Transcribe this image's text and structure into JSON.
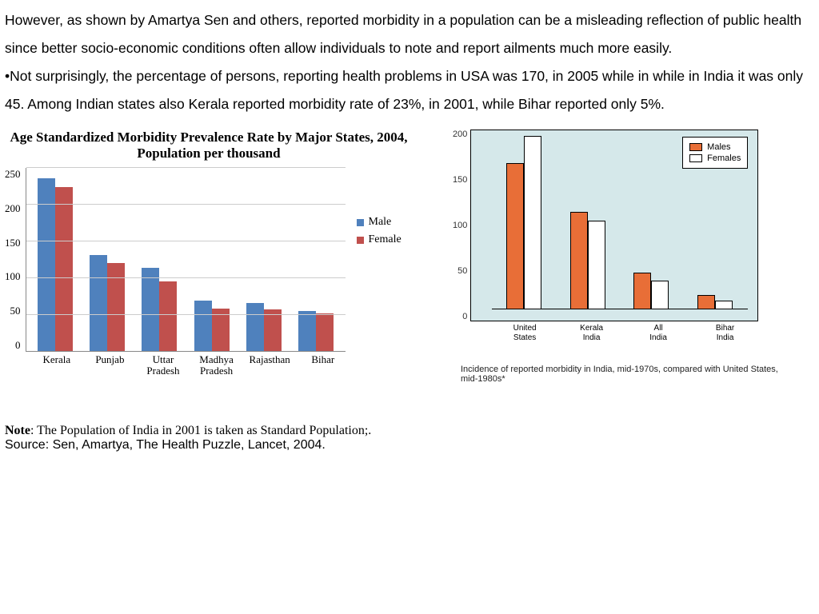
{
  "paragraphs": {
    "p1": "However, as shown by Amartya Sen and others, reported morbidity in a population can be a misleading reflection of  public health since better socio-economic conditions often allow individuals to note and report ailments much more easily.",
    "p2": "•Not surprisingly, the percentage of persons, reporting health problems in USA was 170, in 2005 while in while in India it was only 45. Among Indian states also Kerala reported morbidity rate of 23%, in 2001, while Bihar reported only 5%."
  },
  "chart1": {
    "type": "bar",
    "title": "Age Standardized Morbidity Prevalence Rate by Major States, 2004, Population per thousand",
    "categories": [
      "Kerala",
      "Punjab",
      "Uttar Pradesh",
      "Madhya Pradesh",
      "Rajasthan",
      "Bihar"
    ],
    "series": [
      {
        "name": "Male",
        "color": "#4f81bd",
        "values": [
          235,
          130,
          113,
          68,
          65,
          54
        ]
      },
      {
        "name": "Female",
        "color": "#c0504d",
        "values": [
          223,
          120,
          95,
          58,
          56,
          51
        ]
      }
    ],
    "ylim": [
      0,
      250
    ],
    "ytick_step": 50,
    "label_fontsize": 13,
    "title_fontsize": 17,
    "grid_color": "#cccccc",
    "axis_color": "#888888",
    "legend": {
      "male": "Male",
      "female": "Female"
    }
  },
  "chart2": {
    "type": "bar",
    "categories": [
      "United States",
      "Kerala, India",
      "All India",
      "Bihar, India"
    ],
    "series": [
      {
        "name": "Males",
        "color": "#e86e37",
        "values": [
          162,
          108,
          41,
          16
        ]
      },
      {
        "name": "Females",
        "color": "#ffffff",
        "values": [
          192,
          98,
          32,
          10
        ]
      }
    ],
    "ylim": [
      0,
      200
    ],
    "ytick_step": 50,
    "background_color": "#d5e8ea",
    "border_color": "#000000",
    "label_fontsize": 10,
    "legend": {
      "males": "Males",
      "females": "Females"
    },
    "caption": "Incidence of reported morbidity in India, mid-1970s, compared with United States, mid-1980s*"
  },
  "footer": {
    "note_label": "Note",
    "note_text": ": The Population of India in 2001 is taken as Standard Population;.",
    "source": "Source: Sen, Amartya, The Health Puzzle, Lancet, 2004."
  }
}
